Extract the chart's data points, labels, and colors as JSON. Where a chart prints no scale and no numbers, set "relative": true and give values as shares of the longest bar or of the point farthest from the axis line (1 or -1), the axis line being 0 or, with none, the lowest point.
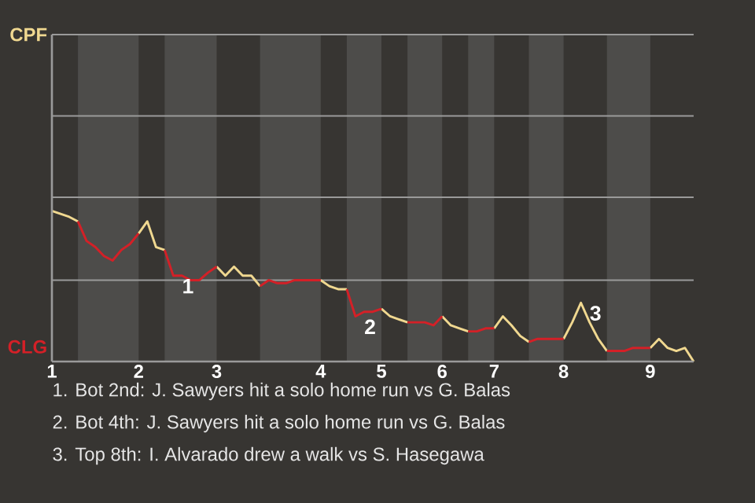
{
  "chart_data": {
    "type": "line",
    "relative": true,
    "ref_lines": [
      {
        "axis": "y",
        "value": 0.54,
        "color": "#9a9a9a"
      },
      {
        "axis": "y",
        "value": 1.09,
        "color": "#9a9a9a"
      },
      {
        "axis": "y",
        "value": 1.63,
        "color": "#9a9a9a"
      },
      {
        "axis": "y",
        "value": 2.17,
        "color": "#9a9a9a"
      }
    ],
    "categories": [
      "1",
      null,
      null,
      null,
      null,
      null,
      null,
      null,
      null,
      null,
      "2",
      null,
      null,
      null,
      null,
      null,
      null,
      null,
      null,
      "3",
      null,
      null,
      null,
      null,
      null,
      null,
      null,
      null,
      null,
      null,
      null,
      "4",
      null,
      null,
      null,
      null,
      null,
      null,
      "5",
      null,
      null,
      null,
      null,
      null,
      null,
      "6",
      null,
      null,
      null,
      null,
      null,
      "7",
      null,
      null,
      null,
      null,
      null,
      null,
      null,
      "8",
      null,
      null,
      null,
      null,
      null,
      null,
      null,
      null,
      null,
      "9",
      null,
      null,
      null,
      null,
      null
    ],
    "series": [
      {
        "name": "CPF",
        "color": "#f0d890",
        "values": [
          1.0,
          0.98,
          0.96,
          0.93,
          null,
          null,
          null,
          null,
          null,
          null,
          0.85,
          0.93,
          0.76,
          0.74,
          null,
          null,
          null,
          null,
          null,
          0.63,
          0.57,
          0.63,
          0.57,
          0.57,
          0.5,
          null,
          null,
          null,
          null,
          null,
          null,
          0.54,
          0.5,
          0.48,
          0.48,
          null,
          null,
          null,
          0.35,
          0.3,
          0.28,
          0.26,
          null,
          null,
          null,
          0.3,
          0.24,
          0.22,
          0.2,
          null,
          null,
          0.22,
          0.3,
          0.24,
          0.17,
          0.13,
          null,
          null,
          null,
          0.15,
          0.26,
          0.39,
          0.26,
          0.15,
          0.07,
          null,
          null,
          null,
          null,
          0.09,
          0.15,
          0.09,
          0.07,
          0.09,
          0
        ]
      },
      {
        "name": "CLG",
        "color": "#d42027",
        "values": [
          null,
          null,
          null,
          0.93,
          0.8,
          0.76,
          0.7,
          0.67,
          0.74,
          0.78,
          0.85,
          null,
          null,
          0.74,
          0.57,
          0.57,
          0.54,
          0.54,
          0.59,
          0.63,
          null,
          null,
          null,
          null,
          0.5,
          0.54,
          0.52,
          0.52,
          0.54,
          0.54,
          0.54,
          0.54,
          null,
          null,
          0.48,
          0.3,
          0.33,
          0.33,
          0.35,
          null,
          null,
          0.26,
          0.26,
          0.26,
          0.24,
          0.3,
          null,
          null,
          0.2,
          0.2,
          0.22,
          0.22,
          null,
          null,
          null,
          0.13,
          0.15,
          0.15,
          0.15,
          0.15,
          null,
          null,
          null,
          null,
          0.07,
          0.07,
          0.07,
          0.09,
          0.09,
          0.09,
          null,
          null,
          null,
          null,
          null
        ]
      }
    ],
    "annotations": [
      {
        "text": "1",
        "y": 0.57
      },
      {
        "text": "2",
        "y": 0.3
      },
      {
        "text": "3"
      },
      "1. Bot 2nd: J. Sawyers hit a solo home run vs G. Balas",
      "2. Bot 4th: J. Sawyers hit a solo home run vs G. Balas",
      "3. Top 8th: I. Alvarado drew a walk vs S. Hasegawa"
    ]
  }
}
